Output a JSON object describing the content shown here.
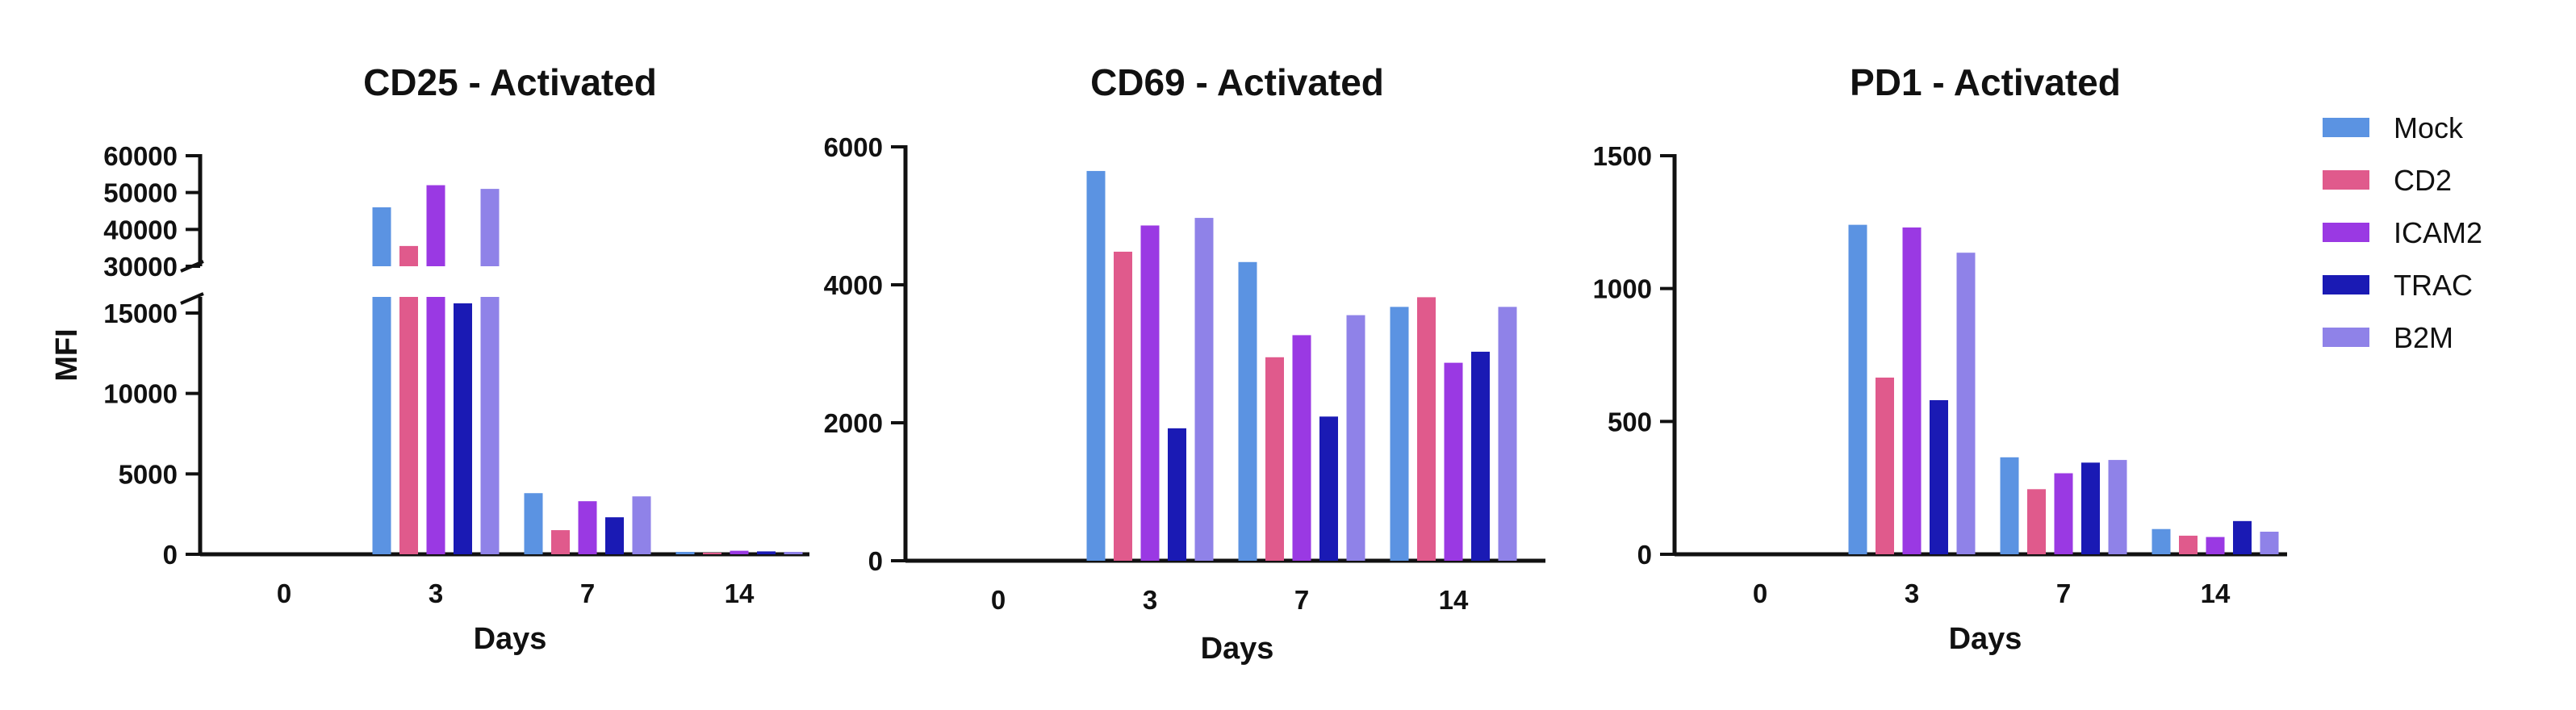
{
  "colors": {
    "Mock": "#5b93e2",
    "CD2": "#e05a8c",
    "ICAM2": "#9a39e3",
    "TRAC": "#1a1ab4",
    "B2M": "#8f82e8"
  },
  "legend": [
    "Mock",
    "CD2",
    "ICAM2",
    "TRAC",
    "B2M"
  ],
  "chart_data": [
    {
      "type": "bar",
      "title": "CD25 - Activated",
      "xlabel": "Days",
      "ylabel": "MFI",
      "categories": [
        "0",
        "3",
        "7",
        "14"
      ],
      "axis_break": {
        "lower": [
          0,
          16000
        ],
        "upper": [
          30000,
          60000
        ]
      },
      "lower_ticks": [
        "0",
        "5000",
        "10000",
        "15000"
      ],
      "upper_ticks": [
        "30000",
        "40000",
        "50000",
        "60000"
      ],
      "series": [
        {
          "name": "Mock",
          "values": [
            0,
            46000,
            3800,
            150
          ]
        },
        {
          "name": "CD2",
          "values": [
            0,
            35500,
            1500,
            100
          ]
        },
        {
          "name": "ICAM2",
          "values": [
            0,
            52000,
            3300,
            220
          ]
        },
        {
          "name": "TRAC",
          "values": [
            0,
            15600,
            2300,
            180
          ]
        },
        {
          "name": "B2M",
          "values": [
            0,
            51000,
            3600,
            150
          ]
        }
      ]
    },
    {
      "type": "bar",
      "title": "CD69 - Activated",
      "xlabel": "Days",
      "ylabel": "",
      "categories": [
        "0",
        "3",
        "7",
        "14"
      ],
      "ylim": [
        0,
        6000
      ],
      "ticks": [
        "0",
        "2000",
        "4000",
        "6000"
      ],
      "series": [
        {
          "name": "Mock",
          "values": [
            0,
            5650,
            4330,
            3680
          ]
        },
        {
          "name": "CD2",
          "values": [
            0,
            4480,
            2950,
            3820
          ]
        },
        {
          "name": "ICAM2",
          "values": [
            0,
            4860,
            3270,
            2870
          ]
        },
        {
          "name": "TRAC",
          "values": [
            0,
            1920,
            2090,
            3030
          ]
        },
        {
          "name": "B2M",
          "values": [
            0,
            4970,
            3560,
            3680
          ]
        }
      ]
    },
    {
      "type": "bar",
      "title": "PD1 - Activated",
      "xlabel": "Days",
      "ylabel": "",
      "categories": [
        "0",
        "3",
        "7",
        "14"
      ],
      "ylim": [
        0,
        1500
      ],
      "ticks": [
        "0",
        "500",
        "1000",
        "1500"
      ],
      "series": [
        {
          "name": "Mock",
          "values": [
            0,
            1240,
            365,
            95
          ]
        },
        {
          "name": "CD2",
          "values": [
            0,
            665,
            245,
            70
          ]
        },
        {
          "name": "ICAM2",
          "values": [
            0,
            1230,
            305,
            65
          ]
        },
        {
          "name": "TRAC",
          "values": [
            0,
            580,
            345,
            125
          ]
        },
        {
          "name": "B2M",
          "values": [
            0,
            1135,
            355,
            85
          ]
        }
      ]
    }
  ]
}
